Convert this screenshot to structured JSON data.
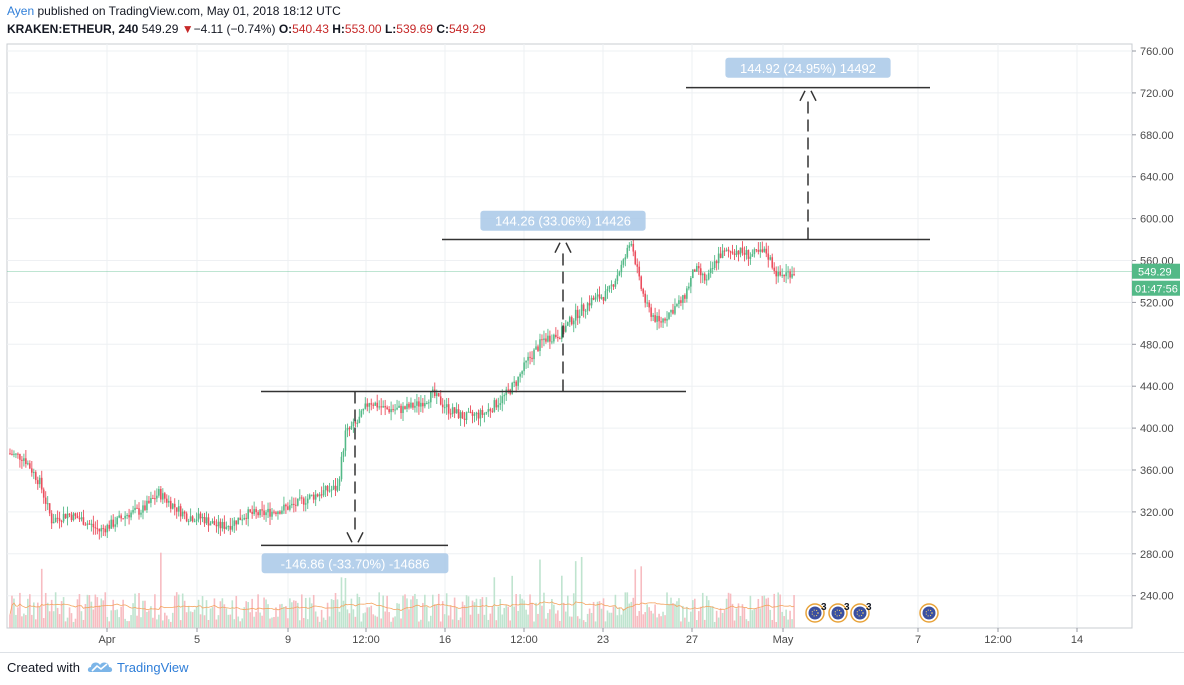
{
  "header": {
    "author": "Ayen",
    "published": "published on TradingView.com, May 01, 2018 18:12 UTC",
    "symbol": "KRAKEN:ETHEUR, 240",
    "price": "549.29",
    "change_arrow": "▼",
    "change": "−4.11 (−0.74%)",
    "open_label": "O:",
    "open": "540.43",
    "high_label": "H:",
    "high": "553.00",
    "low_label": "L:",
    "low": "539.69",
    "close_label": "C:",
    "close": "549.29"
  },
  "footer": {
    "created_with": "Created with",
    "brand": "TradingView",
    "logo_icon": "tradingview-cloud-icon"
  },
  "colors": {
    "up": "#53b987",
    "down": "#eb4d5c",
    "up_volume": "#bfe4cf",
    "down_volume": "#f7bcc1",
    "ma_line": "#f4a460",
    "price_tag": "#53b987",
    "timer_tag": "#53b987",
    "measure_label_bg": "#a8c8e8",
    "drawing_line": "#333333"
  },
  "chart_data": {
    "type": "candlestick",
    "symbol": "KRAKEN:ETHEUR",
    "interval": "240",
    "last_price": "549.29",
    "countdown": "01:47:56",
    "ylim": [
      208,
      765
    ],
    "y_ticks": [
      "760.00",
      "720.00",
      "680.00",
      "640.00",
      "600.00",
      "560.00",
      "520.00",
      "480.00",
      "440.00",
      "400.00",
      "360.00",
      "320.00",
      "280.00",
      "240.00"
    ],
    "x_ticks": [
      "Apr",
      "5",
      "9",
      "12:00",
      "16",
      "12:00",
      "23",
      "27",
      "May",
      "7",
      "12:00",
      "14"
    ],
    "approx_price_path": [
      [
        0,
        376
      ],
      [
        8,
        372
      ],
      [
        16,
        348
      ],
      [
        22,
        312
      ],
      [
        30,
        318
      ],
      [
        38,
        312
      ],
      [
        46,
        302
      ],
      [
        54,
        310
      ],
      [
        60,
        318
      ],
      [
        68,
        322
      ],
      [
        76,
        338
      ],
      [
        82,
        328
      ],
      [
        90,
        316
      ],
      [
        98,
        314
      ],
      [
        106,
        306
      ],
      [
        112,
        308
      ],
      [
        120,
        318
      ],
      [
        128,
        318
      ],
      [
        136,
        322
      ],
      [
        144,
        326
      ],
      [
        152,
        334
      ],
      [
        160,
        340
      ],
      [
        166,
        343
      ],
      [
        170,
        395
      ],
      [
        176,
        405
      ],
      [
        182,
        426
      ],
      [
        190,
        418
      ],
      [
        198,
        418
      ],
      [
        206,
        422
      ],
      [
        214,
        432
      ],
      [
        222,
        418
      ],
      [
        230,
        410
      ],
      [
        240,
        414
      ],
      [
        250,
        430
      ],
      [
        256,
        444
      ],
      [
        262,
        465
      ],
      [
        270,
        485
      ],
      [
        278,
        490
      ],
      [
        286,
        508
      ],
      [
        294,
        522
      ],
      [
        302,
        528
      ],
      [
        310,
        558
      ],
      [
        314,
        580
      ],
      [
        318,
        540
      ],
      [
        322,
        515
      ],
      [
        328,
        500
      ],
      [
        334,
        512
      ],
      [
        340,
        522
      ],
      [
        346,
        552
      ],
      [
        352,
        540
      ],
      [
        358,
        565
      ],
      [
        366,
        570
      ],
      [
        374,
        565
      ],
      [
        382,
        568
      ],
      [
        388,
        545
      ],
      [
        396,
        550
      ]
    ],
    "measurements": [
      {
        "label": "144.92 (24.95%) 14492",
        "from": 580,
        "to": 725
      },
      {
        "label": "144.26 (33.06%) 14426",
        "from": 435,
        "to": 580
      },
      {
        "label": "-146.86 (-33.70%) -14686",
        "from": 435,
        "to": 288
      }
    ],
    "horizontal_levels": [
      725,
      580,
      435,
      288
    ],
    "volume": {
      "ma_series": true
    },
    "event_markers": [
      {
        "count": "3"
      },
      {
        "count": "3"
      },
      {
        "count": "3"
      },
      {
        "count": ""
      }
    ]
  }
}
